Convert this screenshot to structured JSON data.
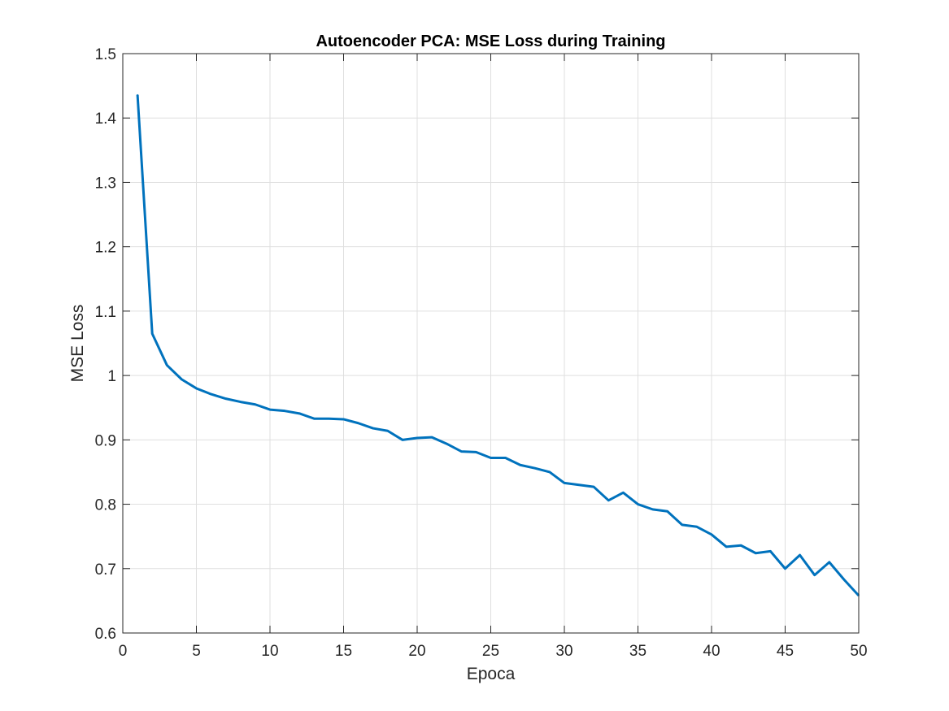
{
  "chart_data": {
    "type": "line",
    "title": "Autoencoder PCA: MSE Loss during Training",
    "xlabel": "Epoca",
    "ylabel": "MSE Loss",
    "xlim": [
      0,
      50
    ],
    "ylim": [
      0.6,
      1.5
    ],
    "x_ticks": [
      "0",
      "5",
      "10",
      "15",
      "20",
      "25",
      "30",
      "35",
      "40",
      "45",
      "50"
    ],
    "y_ticks": [
      "0.6",
      "0.7",
      "0.8",
      "0.9",
      "1",
      "1.1",
      "1.2",
      "1.3",
      "1.4",
      "1.5"
    ],
    "grid": true,
    "line_color": "#0072BD",
    "series": [
      {
        "x": [
          1,
          2,
          3,
          4,
          5,
          6,
          7,
          8,
          9,
          10,
          11,
          12,
          13,
          14,
          15,
          16,
          17,
          18,
          19,
          20,
          21,
          22,
          23,
          24,
          25,
          26,
          27,
          28,
          29,
          30,
          31,
          32,
          33,
          34,
          35,
          36,
          37,
          38,
          39,
          40,
          41,
          42,
          43,
          44,
          45,
          46,
          47,
          48,
          49,
          50
        ],
        "values": [
          1.436,
          1.065,
          1.016,
          0.994,
          0.98,
          0.971,
          0.964,
          0.959,
          0.955,
          0.947,
          0.945,
          0.941,
          0.933,
          0.933,
          0.932,
          0.926,
          0.918,
          0.914,
          0.9,
          0.903,
          0.904,
          0.894,
          0.882,
          0.881,
          0.872,
          0.872,
          0.861,
          0.856,
          0.85,
          0.833,
          0.83,
          0.827,
          0.806,
          0.818,
          0.8,
          0.792,
          0.789,
          0.768,
          0.765,
          0.753,
          0.734,
          0.736,
          0.724,
          0.727,
          0.7,
          0.721,
          0.69,
          0.71,
          0.683,
          0.658
        ]
      }
    ]
  }
}
